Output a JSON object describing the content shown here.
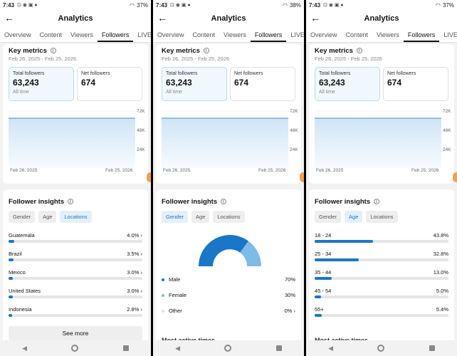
{
  "panels": [
    {
      "status": {
        "time": "7:43",
        "battery": "37%"
      },
      "header": {
        "title": "Analytics"
      },
      "tabs": [
        "Overview",
        "Content",
        "Viewers",
        "Followers",
        "LIVE"
      ],
      "active_tab": "Followers",
      "key_metrics": {
        "title": "Key metrics",
        "date_range": "Feb 26, 2025 - Feb 25, 2026",
        "total_followers": {
          "label": "Total followers",
          "value": "63,243",
          "sub": "All time"
        },
        "net_followers": {
          "label": "Net followers",
          "value": "674"
        },
        "y_ticks": [
          "72K",
          "48K",
          "24K"
        ],
        "x_ticks": [
          "Feb 26, 2025",
          "Feb 25, 2026"
        ]
      },
      "insights": {
        "title": "Follower insights",
        "chips": [
          "Gender",
          "Age",
          "Locations"
        ],
        "active_chip": "Locations",
        "rows": [
          {
            "label": "Guatemala",
            "value": "4.0%"
          },
          {
            "label": "Brazil",
            "value": "3.5%"
          },
          {
            "label": "Mexico",
            "value": "3.0%"
          },
          {
            "label": "United States",
            "value": "3.0%"
          },
          {
            "label": "Indonesia",
            "value": "2.8%"
          }
        ],
        "see_more": "See more"
      }
    },
    {
      "status": {
        "time": "7:43",
        "battery": "38%"
      },
      "header": {
        "title": "Analytics"
      },
      "tabs": [
        "Overview",
        "Content",
        "Viewers",
        "Followers",
        "LIVE"
      ],
      "active_tab": "Followers",
      "key_metrics": {
        "title": "Key metrics",
        "date_range": "Feb 26, 2025 - Feb 25, 2026",
        "total_followers": {
          "label": "Total followers",
          "value": "63,243",
          "sub": "All time"
        },
        "net_followers": {
          "label": "Net followers",
          "value": "674"
        },
        "y_ticks": [
          "72K",
          "48K",
          "24K"
        ],
        "x_ticks": [
          "Feb 26, 2025",
          "Feb 25, 2026"
        ]
      },
      "insights": {
        "title": "Follower insights",
        "chips": [
          "Gender",
          "Age",
          "Locations"
        ],
        "active_chip": "Gender",
        "legend": [
          {
            "label": "Male",
            "value": "70%",
            "color": "#1976c8"
          },
          {
            "label": "Female",
            "value": "30%",
            "color": "#7fbbe9"
          },
          {
            "label": "Other",
            "value": "0%",
            "color": "#e0e0e0"
          }
        ],
        "next_title": "Most active times"
      }
    },
    {
      "status": {
        "time": "7:43",
        "battery": "37%"
      },
      "header": {
        "title": "Analytics"
      },
      "tabs": [
        "Overview",
        "Content",
        "Viewers",
        "Followers",
        "LIVE"
      ],
      "active_tab": "Followers",
      "key_metrics": {
        "title": "Key metrics",
        "date_range": "Feb 26, 2025 - Feb 25, 2026",
        "total_followers": {
          "label": "Total followers",
          "value": "63,243",
          "sub": "All time"
        },
        "net_followers": {
          "label": "Net followers",
          "value": "674"
        },
        "y_ticks": [
          "72K",
          "48K",
          "24K"
        ],
        "x_ticks": [
          "Feb 26, 2025",
          "Feb 25, 2026"
        ]
      },
      "insights": {
        "title": "Follower insights",
        "chips": [
          "Gender",
          "Age",
          "Locations"
        ],
        "active_chip": "Age",
        "rows": [
          {
            "label": "18 - 24",
            "value": "43.8%"
          },
          {
            "label": "25 - 34",
            "value": "32.8%"
          },
          {
            "label": "35 - 44",
            "value": "13.0%"
          },
          {
            "label": "45 - 54",
            "value": "5.0%"
          },
          {
            "label": "55+",
            "value": "5.4%"
          }
        ],
        "next_title": "Most active times"
      }
    }
  ],
  "colors": {
    "accent": "#1976c8",
    "accent_light": "#7fbbe9",
    "chip_active_bg": "#e3f0fb"
  },
  "icons": [
    "back-arrow-icon",
    "info-icon",
    "chevron-right-icon",
    "nav-back-icon",
    "nav-home-icon",
    "nav-recents-icon"
  ]
}
